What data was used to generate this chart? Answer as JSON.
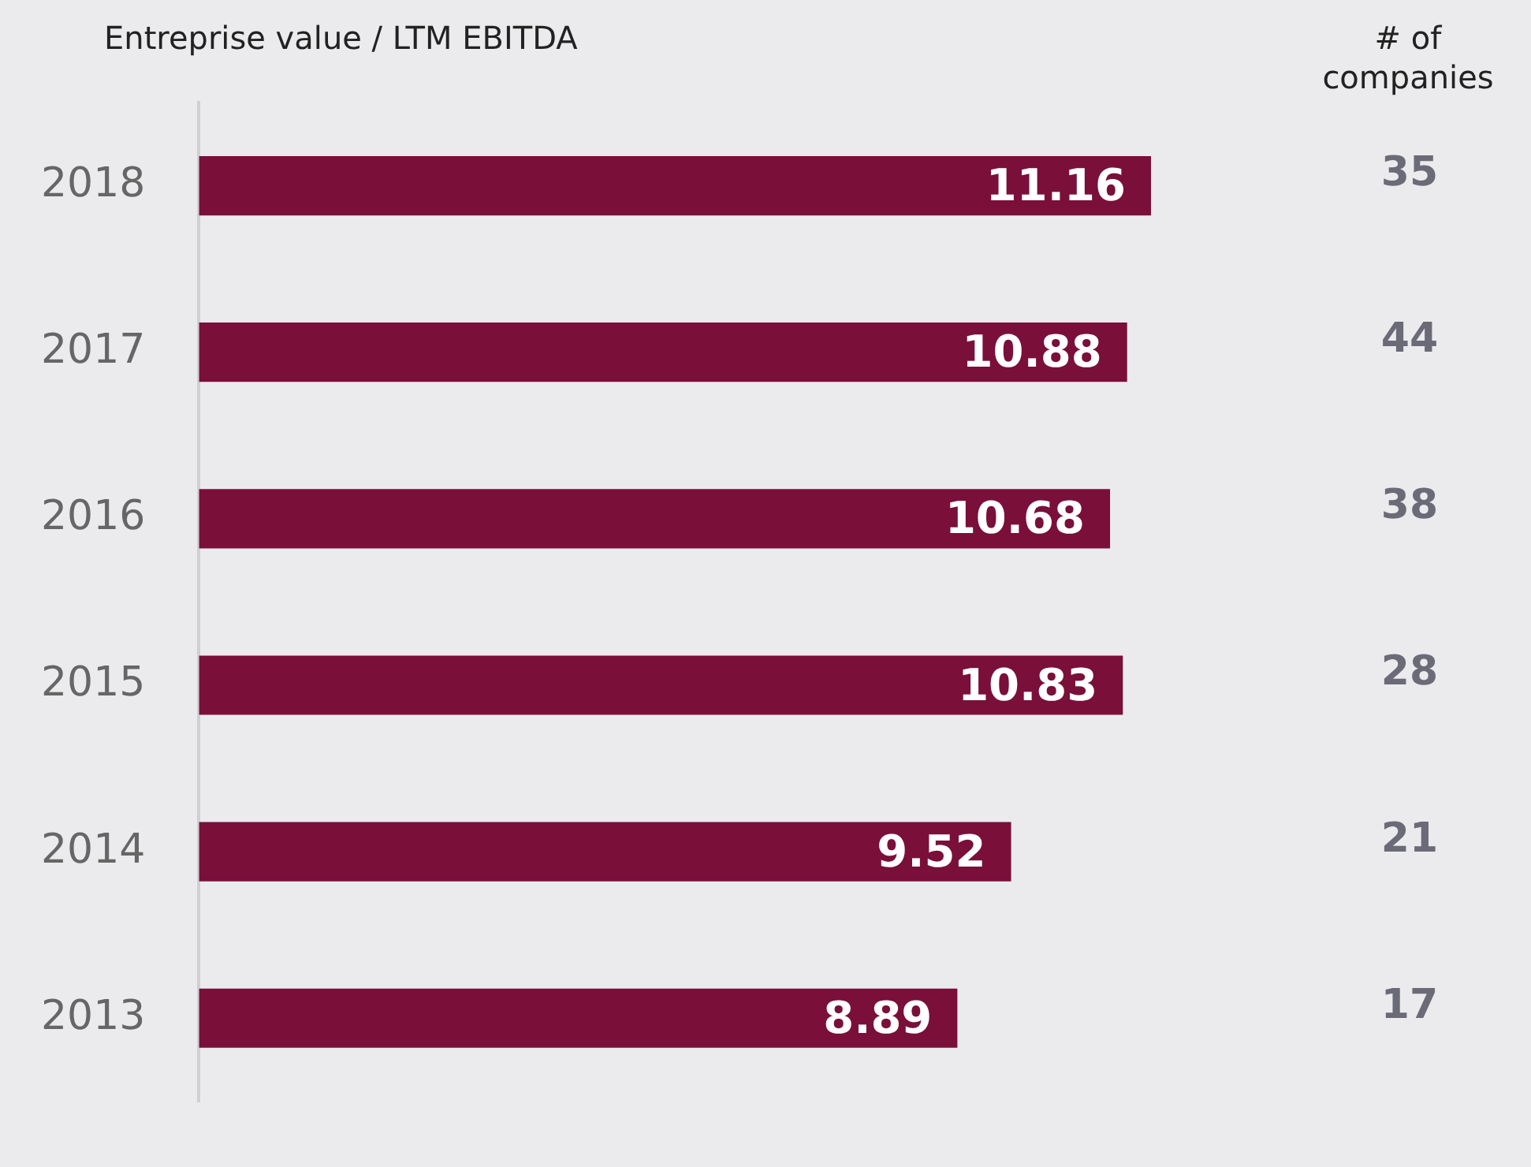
{
  "chart_data": {
    "type": "bar",
    "orientation": "horizontal",
    "title": "Entreprise value / LTM EBITDA",
    "categories": [
      "2018",
      "2017",
      "2016",
      "2015",
      "2014",
      "2013"
    ],
    "values": [
      11.16,
      10.88,
      10.68,
      10.83,
      9.52,
      8.89
    ],
    "color": "#7a0f3a",
    "tick_labels": "y",
    "data_labels": true,
    "annotations": [
      "# of companies",
      "35",
      "44",
      "38",
      "28",
      "21",
      "17"
    ]
  }
}
